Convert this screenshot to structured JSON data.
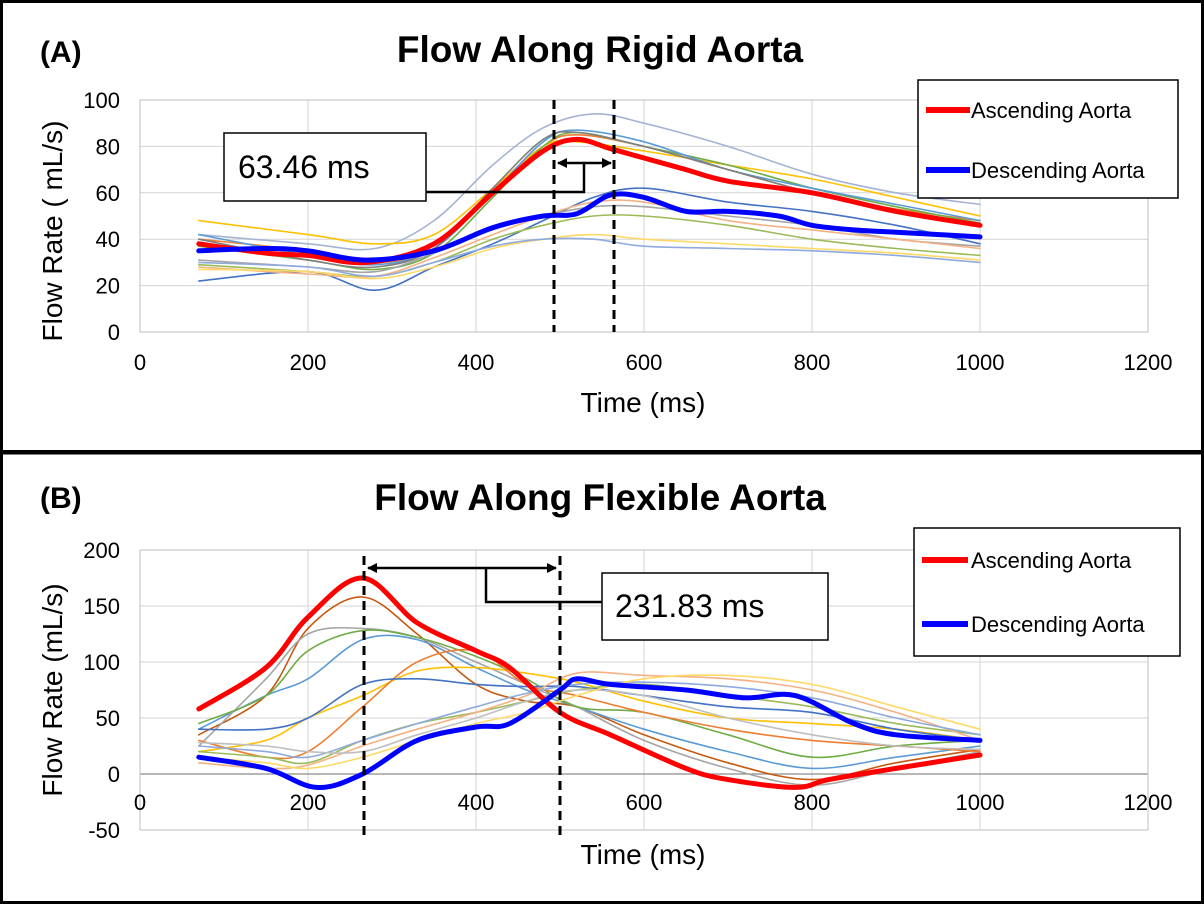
{
  "chart_data": [
    {
      "type": "line",
      "panel_label": "(A)",
      "title": "Flow Along Rigid Aorta",
      "xlabel": "Time  (ms)",
      "ylabel": "Flow Rate ( mL/s)",
      "xlim": [
        0,
        1200
      ],
      "ylim": [
        0,
        100
      ],
      "xticks": [
        0,
        200,
        400,
        600,
        800,
        1000,
        1200
      ],
      "yticks": [
        0,
        20,
        40,
        60,
        80,
        100
      ],
      "grid": true,
      "legend_position": "top-right",
      "legend": [
        "Ascending Aorta",
        "Descending Aorta"
      ],
      "annotation": {
        "text": "63.46 ms",
        "interval_ms": [
          495,
          565
        ]
      },
      "series": [
        {
          "name": "Ascending Aorta",
          "color": "#ff0000",
          "x": [
            70,
            150,
            200,
            270,
            350,
            420,
            480,
            520,
            560,
            600,
            650,
            700,
            800,
            900,
            1000
          ],
          "values": [
            38,
            34,
            33,
            30,
            38,
            60,
            78,
            83,
            79,
            75,
            70,
            65,
            60,
            52,
            46
          ]
        },
        {
          "name": "Descending Aorta",
          "color": "#0000ff",
          "x": [
            70,
            150,
            200,
            270,
            350,
            420,
            480,
            520,
            560,
            600,
            650,
            700,
            760,
            800,
            850,
            900,
            1000
          ],
          "values": [
            35,
            36,
            35,
            31,
            35,
            45,
            50,
            51,
            59,
            58,
            52,
            52,
            50,
            46,
            44,
            43,
            41
          ]
        },
        {
          "name": "",
          "color": "#a5b4d2",
          "x": [
            70,
            200,
            280,
            350,
            420,
            480,
            540,
            600,
            700,
            800,
            900,
            1000
          ],
          "values": [
            42,
            38,
            36,
            48,
            72,
            88,
            94,
            90,
            80,
            68,
            60,
            55
          ]
        },
        {
          "name": "",
          "color": "#ed7d31",
          "x": [
            70,
            200,
            280,
            350,
            420,
            480,
            520,
            600,
            700,
            800,
            900,
            1000
          ],
          "values": [
            40,
            35,
            30,
            36,
            60,
            80,
            85,
            80,
            70,
            60,
            53,
            48
          ]
        },
        {
          "name": "",
          "color": "#ffc000",
          "x": [
            70,
            200,
            280,
            350,
            420,
            480,
            520,
            600,
            700,
            800,
            900,
            1000
          ],
          "values": [
            48,
            42,
            38,
            42,
            62,
            80,
            82,
            78,
            72,
            66,
            58,
            50
          ]
        },
        {
          "name": "",
          "color": "#70ad47",
          "x": [
            70,
            200,
            280,
            350,
            420,
            480,
            520,
            600,
            700,
            800,
            900,
            1000
          ],
          "values": [
            37,
            31,
            27,
            34,
            58,
            80,
            86,
            80,
            72,
            62,
            54,
            47
          ]
        },
        {
          "name": "",
          "color": "#5b9bd5",
          "x": [
            70,
            200,
            280,
            350,
            420,
            480,
            520,
            600,
            700,
            800,
            900,
            1000
          ],
          "values": [
            42,
            33,
            29,
            36,
            60,
            82,
            87,
            82,
            70,
            62,
            55,
            48
          ]
        },
        {
          "name": "",
          "color": "#7f7f7f",
          "x": [
            70,
            200,
            280,
            350,
            420,
            480,
            520,
            600,
            700,
            800,
            900,
            1000
          ],
          "values": [
            40,
            31,
            28,
            36,
            62,
            83,
            86,
            80,
            70,
            60,
            52,
            46
          ]
        },
        {
          "name": "",
          "color": "#4472c4",
          "x": [
            70,
            200,
            280,
            350,
            420,
            480,
            540,
            600,
            700,
            800,
            900,
            1000
          ],
          "values": [
            22,
            26,
            18,
            28,
            38,
            48,
            58,
            62,
            56,
            52,
            46,
            38
          ]
        },
        {
          "name": "",
          "color": "#a5a5a5",
          "x": [
            70,
            200,
            280,
            350,
            420,
            480,
            540,
            600,
            700,
            800,
            900,
            1000
          ],
          "values": [
            31,
            28,
            26,
            34,
            44,
            50,
            54,
            54,
            50,
            46,
            40,
            37
          ]
        },
        {
          "name": "",
          "color": "#9bbb59",
          "x": [
            70,
            200,
            280,
            350,
            420,
            480,
            540,
            600,
            700,
            800,
            900,
            1000
          ],
          "values": [
            29,
            26,
            24,
            30,
            40,
            46,
            50,
            50,
            46,
            40,
            36,
            33
          ]
        },
        {
          "name": "",
          "color": "#f4b183",
          "x": [
            70,
            200,
            280,
            350,
            420,
            480,
            540,
            600,
            700,
            800,
            900,
            1000
          ],
          "values": [
            28,
            25,
            24,
            32,
            42,
            50,
            56,
            56,
            48,
            44,
            40,
            36
          ]
        },
        {
          "name": "",
          "color": "#ffd966",
          "x": [
            70,
            200,
            280,
            350,
            420,
            480,
            540,
            600,
            700,
            800,
            900,
            1000
          ],
          "values": [
            27,
            26,
            23,
            28,
            36,
            40,
            42,
            40,
            38,
            36,
            34,
            31
          ]
        },
        {
          "name": "",
          "color": "#8faadc",
          "x": [
            70,
            200,
            280,
            350,
            420,
            480,
            540,
            600,
            700,
            800,
            900,
            1000
          ],
          "values": [
            30,
            28,
            24,
            30,
            37,
            40,
            40,
            37,
            36,
            35,
            33,
            30
          ]
        }
      ]
    },
    {
      "type": "line",
      "panel_label": "(B)",
      "title": "Flow Along Flexible Aorta",
      "xlabel": "Time  (ms)",
      "ylabel": "Flow Rate (mL/s)",
      "xlim": [
        0,
        1200
      ],
      "ylim": [
        -50,
        200
      ],
      "xticks": [
        0,
        200,
        400,
        600,
        800,
        1000,
        1200
      ],
      "yticks": [
        -50,
        0,
        50,
        100,
        150,
        200
      ],
      "grid": true,
      "legend_position": "top-right",
      "legend": [
        "Ascending Aorta",
        "Descending Aorta"
      ],
      "annotation": {
        "text": "231.83 ms",
        "interval_ms": [
          265,
          500
        ]
      },
      "series": [
        {
          "name": "Ascending Aorta",
          "color": "#ff0000",
          "x": [
            70,
            150,
            200,
            265,
            330,
            400,
            440,
            500,
            560,
            650,
            700,
            780,
            820,
            900,
            1000
          ],
          "values": [
            58,
            95,
            140,
            175,
            135,
            110,
            95,
            55,
            35,
            5,
            -5,
            -12,
            -5,
            5,
            17
          ]
        },
        {
          "name": "Descending Aorta",
          "color": "#0000ff",
          "x": [
            70,
            150,
            210,
            265,
            330,
            400,
            440,
            500,
            520,
            560,
            650,
            720,
            780,
            850,
            900,
            1000
          ],
          "values": [
            15,
            5,
            -12,
            0,
            30,
            42,
            45,
            75,
            85,
            80,
            75,
            68,
            70,
            45,
            35,
            30
          ]
        },
        {
          "name": "",
          "color": "#c55a11",
          "x": [
            70,
            150,
            200,
            265,
            330,
            400,
            460,
            520,
            600,
            700,
            800,
            900,
            1000
          ],
          "values": [
            35,
            70,
            130,
            158,
            125,
            80,
            65,
            60,
            35,
            10,
            -5,
            10,
            22
          ]
        },
        {
          "name": "",
          "color": "#5b9bd5",
          "x": [
            70,
            150,
            200,
            265,
            330,
            400,
            460,
            520,
            600,
            700,
            800,
            900,
            1000
          ],
          "values": [
            40,
            70,
            85,
            120,
            120,
            95,
            75,
            60,
            40,
            20,
            5,
            15,
            25
          ]
        },
        {
          "name": "",
          "color": "#a5a5a5",
          "x": [
            70,
            150,
            200,
            265,
            330,
            400,
            460,
            520,
            600,
            700,
            800,
            900,
            1000
          ],
          "values": [
            25,
            85,
            125,
            130,
            122,
            100,
            80,
            60,
            30,
            5,
            -10,
            5,
            20
          ]
        },
        {
          "name": "",
          "color": "#70ad47",
          "x": [
            70,
            150,
            200,
            265,
            330,
            400,
            460,
            520,
            600,
            700,
            800,
            900,
            1000
          ],
          "values": [
            45,
            70,
            110,
            128,
            122,
            105,
            85,
            60,
            55,
            35,
            15,
            25,
            30
          ]
        },
        {
          "name": "",
          "color": "#ffc000",
          "x": [
            70,
            150,
            200,
            265,
            330,
            400,
            460,
            520,
            600,
            700,
            800,
            900,
            1000
          ],
          "values": [
            20,
            30,
            50,
            70,
            92,
            95,
            90,
            82,
            65,
            50,
            45,
            40,
            30
          ]
        },
        {
          "name": "",
          "color": "#ed7d31",
          "x": [
            70,
            150,
            200,
            265,
            330,
            400,
            460,
            520,
            600,
            700,
            800,
            900,
            1000
          ],
          "values": [
            30,
            15,
            20,
            60,
            100,
            110,
            80,
            70,
            55,
            40,
            30,
            25,
            20
          ]
        },
        {
          "name": "",
          "color": "#4472c4",
          "x": [
            70,
            150,
            200,
            265,
            330,
            400,
            460,
            520,
            600,
            700,
            800,
            900,
            1000
          ],
          "values": [
            40,
            40,
            50,
            80,
            85,
            80,
            78,
            78,
            70,
            60,
            55,
            40,
            30
          ]
        },
        {
          "name": "",
          "color": "#9bbb59",
          "x": [
            70,
            150,
            200,
            265,
            330,
            400,
            460,
            520,
            600,
            700,
            800,
            900,
            1000
          ],
          "values": [
            20,
            15,
            10,
            30,
            45,
            55,
            65,
            75,
            80,
            70,
            60,
            45,
            35
          ]
        },
        {
          "name": "",
          "color": "#f4b183",
          "x": [
            70,
            150,
            200,
            265,
            330,
            400,
            460,
            520,
            600,
            700,
            800,
            900,
            1000
          ],
          "values": [
            10,
            5,
            8,
            25,
            40,
            55,
            70,
            90,
            88,
            85,
            75,
            55,
            30
          ]
        },
        {
          "name": "",
          "color": "#8faadc",
          "x": [
            70,
            150,
            200,
            265,
            330,
            400,
            460,
            520,
            600,
            700,
            800,
            900,
            1000
          ],
          "values": [
            25,
            20,
            15,
            30,
            45,
            60,
            72,
            80,
            82,
            78,
            68,
            50,
            35
          ]
        },
        {
          "name": "",
          "color": "#bfbfbf",
          "x": [
            70,
            150,
            200,
            265,
            330,
            400,
            460,
            520,
            600,
            700,
            800,
            900,
            1000
          ],
          "values": [
            28,
            25,
            20,
            20,
            35,
            50,
            65,
            75,
            70,
            50,
            35,
            25,
            22
          ]
        },
        {
          "name": "",
          "color": "#ffd966",
          "x": [
            70,
            150,
            200,
            265,
            330,
            400,
            460,
            520,
            600,
            700,
            800,
            900,
            1000
          ],
          "values": [
            15,
            10,
            5,
            15,
            30,
            45,
            55,
            70,
            85,
            88,
            80,
            60,
            40
          ]
        }
      ]
    }
  ]
}
